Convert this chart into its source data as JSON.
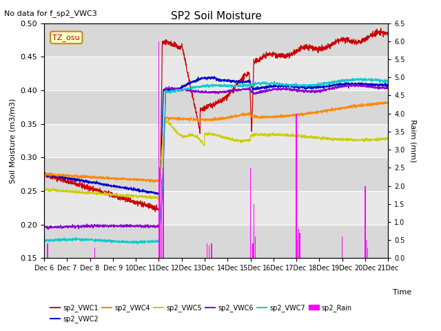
{
  "title": "SP2 Soil Moisture",
  "no_data_text": "No data for f_sp2_VWC3",
  "tz_label": "TZ_osu",
  "ylabel_left": "Soil Moisture (m3/m3)",
  "ylabel_right": "Raim (mm)",
  "xlabel": "Time",
  "ylim_left": [
    0.15,
    0.5
  ],
  "ylim_right": [
    0.0,
    6.5
  ],
  "colors": {
    "VWC1": "#cc0000",
    "VWC2": "#0000cc",
    "VWC4": "#ff8800",
    "VWC5": "#cccc00",
    "VWC6": "#8800cc",
    "VWC7": "#00cccc",
    "Rain": "#ff00ff"
  },
  "bg_alternating": [
    "#e8e8e8",
    "#d8d8d8"
  ],
  "grid_color": "#ffffff"
}
